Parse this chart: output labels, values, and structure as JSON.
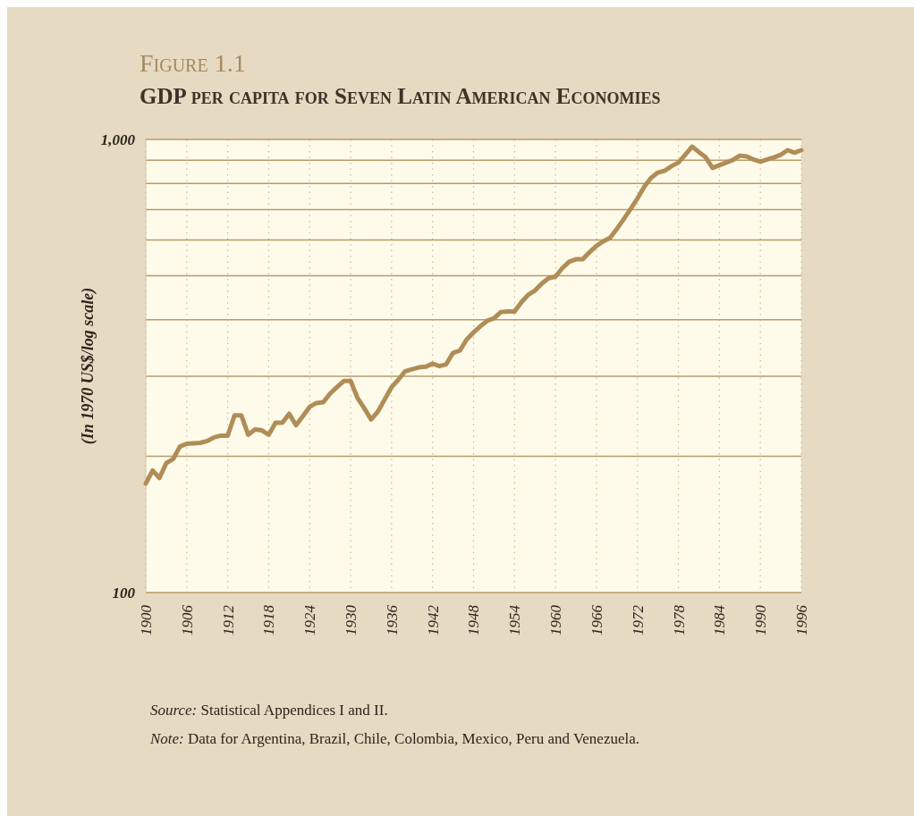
{
  "chart_data": {
    "type": "line",
    "title": "Figure 1.1",
    "subtitle": "GDP per capita for Seven Latin American Economies",
    "ylabel": "(In 1970 US$/log scale)",
    "annotations": [
      "Source: Statistical Appendices I and II.",
      "Note: Data for Argentina, Brazil, Chile, Colombia, Mexico, Peru and Venezuela."
    ],
    "log": true,
    "grid": true,
    "marker": "none",
    "line_style": "solid",
    "xlim": [
      1900,
      1996
    ],
    "xticks": [
      1900,
      1906,
      1912,
      1918,
      1924,
      1930,
      1936,
      1942,
      1948,
      1954,
      1960,
      1966,
      1972,
      1978,
      1984,
      1990,
      1996
    ],
    "ylim": [
      100,
      1000
    ],
    "yticks": [
      100,
      {
        "value": 200,
        "label": null
      },
      {
        "value": 300,
        "label": null
      },
      {
        "value": 400,
        "label": null
      },
      {
        "value": 500,
        "label": null
      },
      {
        "value": 600,
        "label": null
      },
      {
        "value": 700,
        "label": null
      },
      {
        "value": 800,
        "label": null
      },
      {
        "value": 900,
        "label": null
      },
      {
        "value": 1000,
        "label": "1,000"
      }
    ],
    "x": [
      1900,
      1901,
      1902,
      1903,
      1904,
      1905,
      1906,
      1908,
      1909,
      1910,
      1911,
      1912,
      1913,
      1914,
      1915,
      1916,
      1917,
      1918,
      1919,
      1920,
      1921,
      1922,
      1923,
      1924,
      1925,
      1926,
      1927,
      1928,
      1929,
      1930,
      1931,
      1932,
      1933,
      1934,
      1935,
      1936,
      1937,
      1938,
      1939,
      1940,
      1941,
      1942,
      1943,
      1944,
      1945,
      1946,
      1947,
      1948,
      1949,
      1950,
      1951,
      1952,
      1953,
      1954,
      1955,
      1956,
      1957,
      1958,
      1959,
      1960,
      1961,
      1962,
      1963,
      1964,
      1965,
      1966,
      1967,
      1968,
      1969,
      1970,
      1971,
      1972,
      1973,
      1974,
      1975,
      1976,
      1977,
      1978,
      1979,
      1980,
      1981,
      1982,
      1983,
      1984,
      1985,
      1986,
      1987,
      1988,
      1989,
      1990,
      1991,
      1992,
      1993,
      1994,
      1995,
      1996
    ],
    "series": [
      {
        "color": "#b08d57",
        "values": [
          174,
          186,
          179,
          193,
          197,
          210,
          213,
          214,
          216,
          220,
          222,
          222,
          246,
          246,
          223,
          229,
          228,
          223,
          237,
          237,
          248,
          234,
          245,
          257,
          262,
          263,
          275,
          284,
          293,
          293,
          269,
          255,
          241,
          251,
          267,
          284,
          295,
          308,
          311,
          314,
          315,
          320,
          316,
          319,
          338,
          342,
          362,
          375,
          387,
          398,
          403,
          416,
          417,
          417,
          437,
          454,
          464,
          481,
          494,
          498,
          520,
          537,
          544,
          544,
          564,
          582,
          596,
          607,
          635,
          667,
          702,
          741,
          786,
          823,
          845,
          853,
          873,
          889,
          925,
          964,
          938,
          913,
          865,
          877,
          889,
          901,
          921,
          917,
          903,
          893,
          903,
          913,
          925,
          947,
          935,
          947
        ]
      }
    ]
  }
}
